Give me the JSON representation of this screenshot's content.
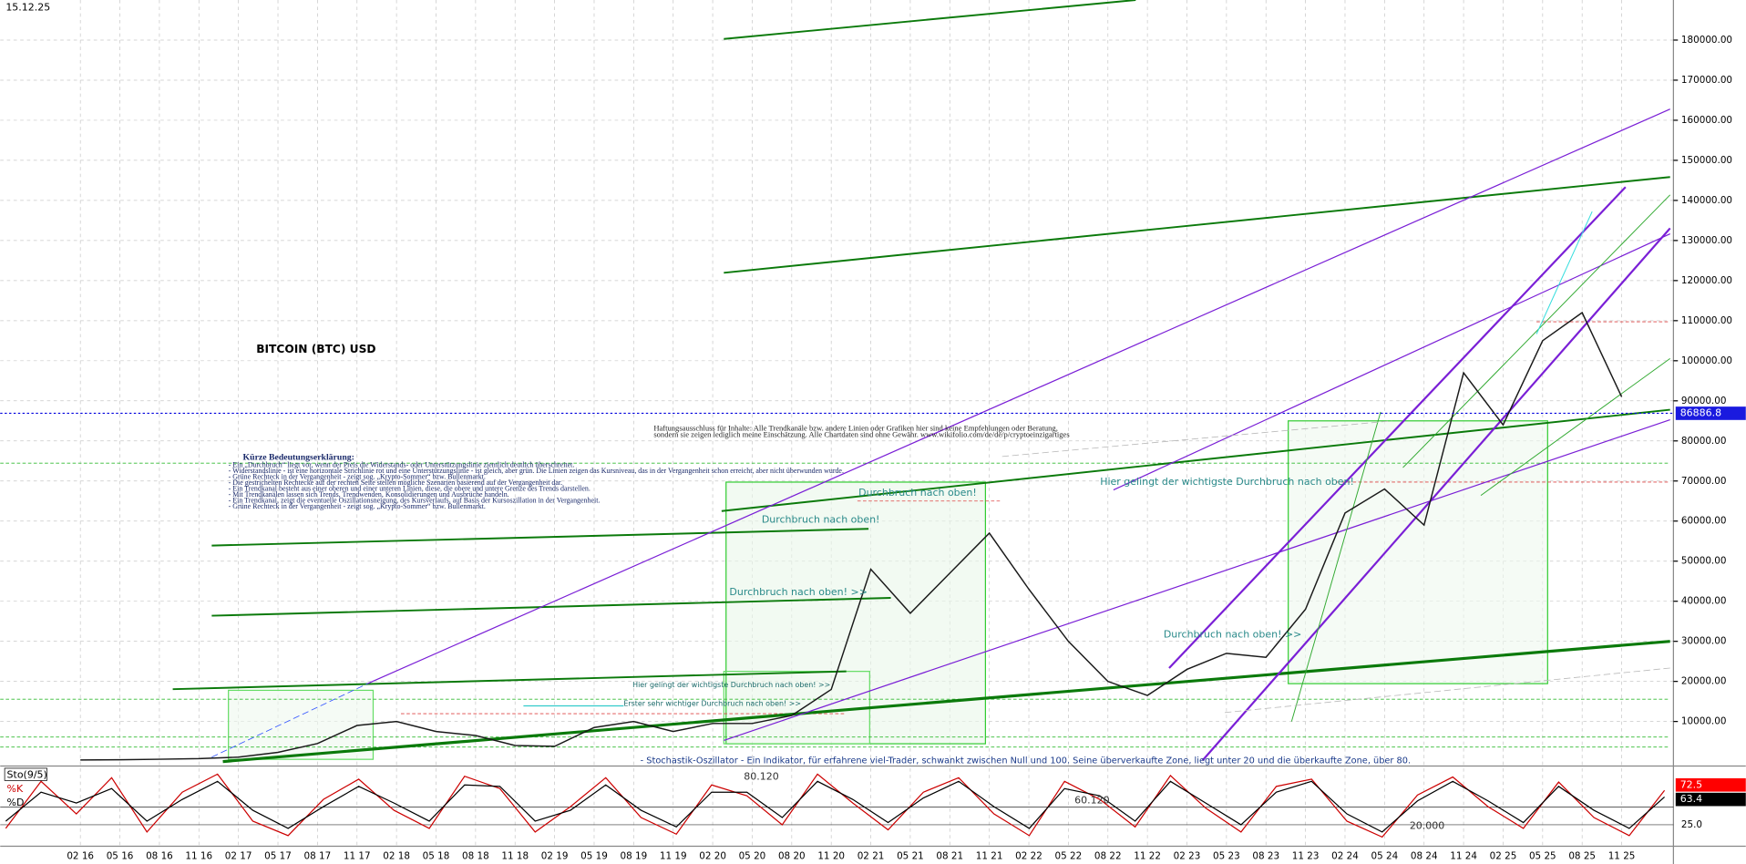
{
  "chart_data": [
    {
      "type": "line",
      "title": "BITCOIN (BTC) USD",
      "date": "15.12.25",
      "categories": [
        "02 16",
        "05 16",
        "08 16",
        "11 16",
        "02 17",
        "05 17",
        "08 17",
        "11 17",
        "02 18",
        "05 18",
        "08 18",
        "11 18",
        "02 19",
        "05 19",
        "08 19",
        "11 19",
        "02 20",
        "05 20",
        "08 20",
        "11 20",
        "02 21",
        "05 21",
        "08 21",
        "11 21",
        "02 22",
        "05 22",
        "08 22",
        "11 22",
        "02 23",
        "05 23",
        "08 23",
        "11 23",
        "02 24",
        "05 24",
        "08 24",
        "11 24",
        "02 25",
        "05 25",
        "08 25",
        "11 25"
      ],
      "series": [
        {
          "name": "BTC",
          "color": "#1a1a1a",
          "values": [
            400,
            450,
            580,
            730,
            1100,
            2300,
            4500,
            9000,
            10000,
            7500,
            6500,
            4000,
            3800,
            8500,
            10000,
            7500,
            9500,
            9500,
            11500,
            18000,
            48000,
            37000,
            47000,
            57000,
            43000,
            30000,
            20000,
            16500,
            23000,
            27000,
            26000,
            38000,
            62000,
            68000,
            59000,
            97000,
            84000,
            105000,
            112000,
            91000
          ]
        }
      ],
      "last_price": 86886.8,
      "ylim": [
        0,
        190000
      ],
      "yticks": [
        {
          "value": 10000,
          "label": "10000.00"
        },
        {
          "value": 20000,
          "label": "20000.00"
        },
        {
          "value": 30000,
          "label": "30000.00"
        },
        {
          "value": 40000,
          "label": "40000.00"
        },
        {
          "value": 50000,
          "label": "50000.00"
        },
        {
          "value": 60000,
          "label": "60000.00"
        },
        {
          "value": 70000,
          "label": "70000.00"
        },
        {
          "value": 80000,
          "label": "80000.00"
        },
        {
          "value": 90000,
          "label": "90000.00"
        },
        {
          "value": 100000,
          "label": "100000.00"
        },
        {
          "value": 110000,
          "label": "110000.00"
        },
        {
          "value": 120000,
          "label": "120000.00"
        },
        {
          "value": 130000,
          "label": "130000.00"
        },
        {
          "value": 140000,
          "label": "140000.00"
        },
        {
          "value": 150000,
          "label": "150000.00"
        },
        {
          "value": 160000,
          "label": "160000.00"
        },
        {
          "value": 170000,
          "label": "170000.00"
        },
        {
          "value": 180000,
          "label": "180000.00"
        }
      ],
      "grid": true,
      "annotations": [
        "Durchbruch nach oben! >>",
        "Durchbruch nach oben!",
        "Durchbruch nach oben!",
        "Durchbruch nach oben! >>",
        "Hier gelingt der wichtigste Durchbruch nach oben!",
        "Hier gelingt der wichtigste Durchbruch nach oben! >>",
        "Erster sehr wichtiger Durchbruch nach oben! >>",
        "- Stochastik-Oszillator - Ein Indikator, für erfahrene viel-Trader, schwankt zwischen Null und 100. Seine überverkaufte Zone, liegt unter 20 und die überkaufte Zone, über 80."
      ],
      "disclaimer": [
        "Haftungsausschluss für Inhalte: Alle Trendkanäle bzw. andere Linien oder Grafiken hier sind keine Empfehlungen oder Beratung,",
        "sondern sie zeigen lediglich meine Einschätzung. Alle Chartdaten sind ohne Gewähr. www.wikifolio.com/de/de/p/cryptoeinzigartiges"
      ],
      "legend_title": "Kürze Bedeutungserklärung:",
      "legend_lines": [
        "- Ein „Durchbruch“ liegt vor, wenn der Preis die Widerstands- oder Unterstützungslinie ziemlich deutlich überschreitet.",
        "- Widerstandslinie - ist eine horizontale Strichlinie rot und eine Unterstützungslinie - ist gleich, aber grün. Die Linien zeigen das Kursniveau, das in der Vergangenheit schon erreicht, aber nicht überwunden wurde.",
        "- Grüne Rechteck in der Vergangenheit - zeigt sog. „Krypto-Sommer“ bzw. Bullenmarkt.",
        "- Die gestrichelten Rechtecke auf der rechten Seite stellen mögliche Szenarien basierend auf der Vergangenheit dar.",
        "- Ein Trendkanal besteht aus einer oberen und einer unteren Linien, diese, die obere und untere Grenze des Trends darstellen.",
        "- Mit Trendkanälen lassen sich Trends, Trendwenden, Konsolidierungen und Ausbrüche handeln.",
        "- Ein Trendkanal, zeigt die eventuelle Oszillationsneigung, des Kursverlaufs, auf Basis der Kursoszillation in der Vergangenheit.",
        "- Grüne Rechteck in der Vergangenheit - zeigt sog. „Krypto-Sommer“ bzw. Bullenmarkt."
      ]
    },
    {
      "type": "stochastic",
      "title": "Sto(9/5)",
      "series": [
        {
          "name": "%K",
          "color": "#cc0000",
          "values": [
            20,
            85,
            40,
            90,
            15,
            70,
            95,
            30,
            10,
            60,
            88,
            45,
            20,
            92,
            75,
            15,
            50,
            90,
            35,
            12,
            80,
            65,
            25,
            95,
            55,
            18,
            70,
            90,
            40,
            10,
            85,
            60,
            22,
            93,
            48,
            15,
            78,
            88,
            30,
            8,
            66,
            91,
            50,
            20,
            84,
            35,
            10,
            72.5
          ]
        },
        {
          "name": "%D",
          "color": "#000000",
          "values": [
            30,
            70,
            55,
            75,
            30,
            60,
            85,
            45,
            20,
            50,
            78,
            55,
            30,
            80,
            78,
            30,
            45,
            80,
            45,
            22,
            70,
            70,
            35,
            85,
            60,
            28,
            62,
            85,
            50,
            20,
            75,
            65,
            30,
            85,
            55,
            25,
            70,
            85,
            40,
            15,
            58,
            85,
            58,
            28,
            78,
            45,
            20,
            63.4
          ]
        }
      ],
      "ylim": [
        0,
        100
      ],
      "yticks": [
        {
          "value": 25,
          "label": "25.0"
        }
      ],
      "annotations": [
        "80.120",
        "60.120",
        "20.000"
      ]
    }
  ]
}
